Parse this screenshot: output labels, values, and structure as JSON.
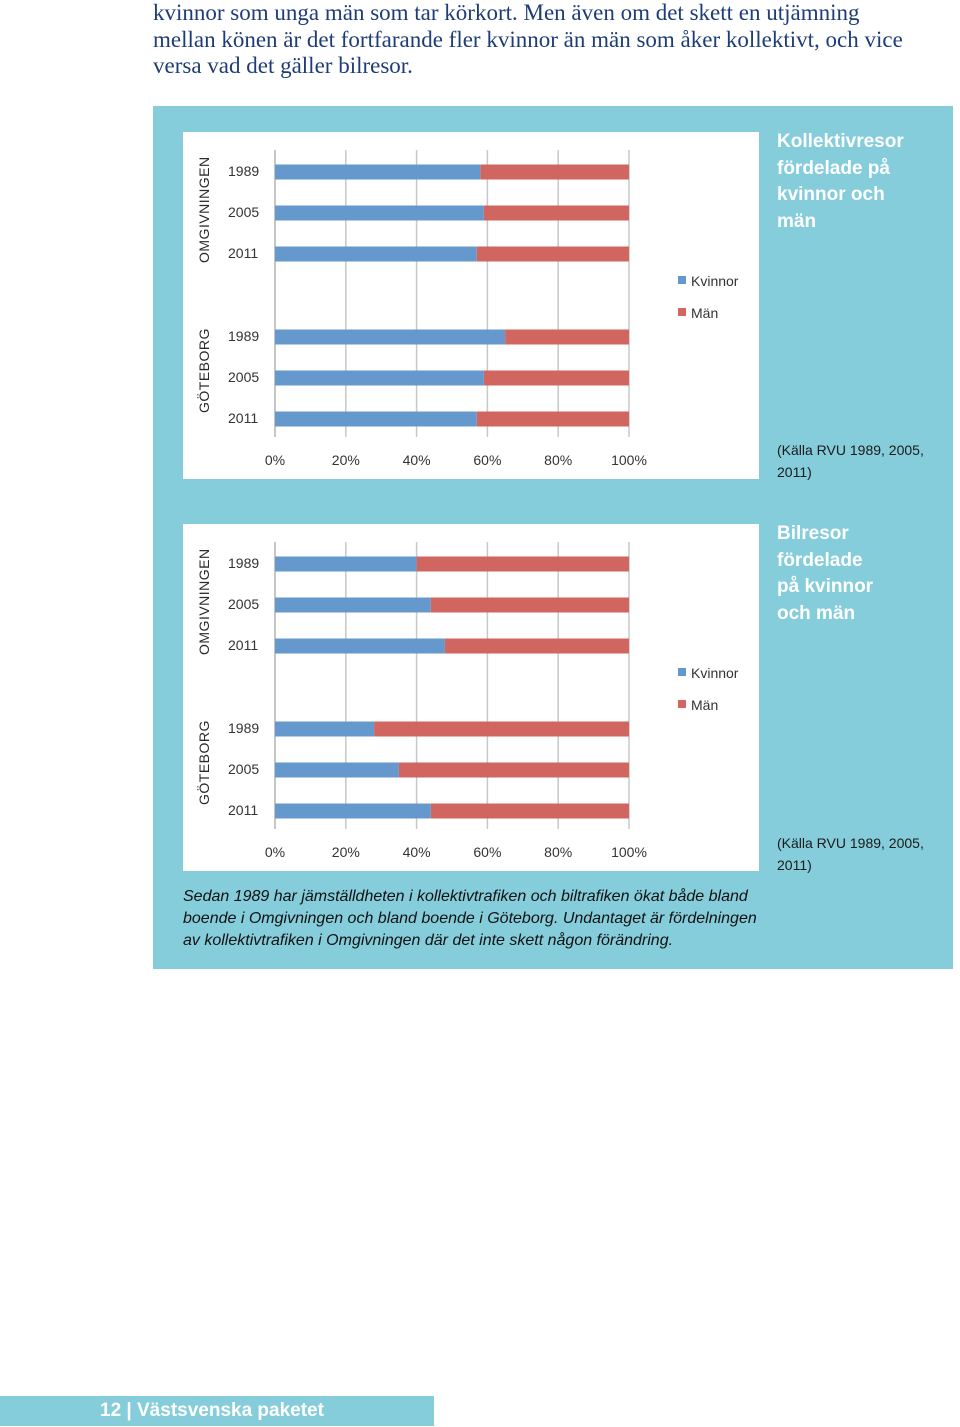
{
  "intro": {
    "lines": [
      "kvinnor som unga män som tar körkort. Men även om det skett en utjämning",
      "mellan könen är det fortfarande fler kvinnor än män som åker kollektivt, och vice",
      "versa vad det gäller bilresor."
    ]
  },
  "colors": {
    "kvinnor": "#6598cc",
    "man": "#d0665f",
    "panel": "#85cddb"
  },
  "charts": [
    {
      "side_title": [
        "Kollektivresor",
        "fördelade på",
        "kvinnor och",
        "män"
      ],
      "source": [
        "(Källa RVU 1989, 2005,",
        "2011)"
      ]
    },
    {
      "side_title": [
        "Bilresor",
        "fördelade",
        "på kvinnor",
        "och män"
      ],
      "source": [
        "(Källa RVU 1989, 2005,",
        "2011)"
      ]
    }
  ],
  "caption": [
    "Sedan 1989 har jämställdheten i kollektivtrafiken och biltrafiken ökat både bland",
    "boende i Omgivningen och bland boende i Göteborg. Undantaget är fördelningen",
    "av kollektivtrafiken i Omgivningen där det inte skett någon förändring."
  ],
  "footer": {
    "text": "12 | Västsvenska paketet"
  },
  "chart_data": [
    {
      "type": "bar",
      "orientation": "horizontal",
      "stacked": "100%",
      "title": "Kollektivresor fördelade på kvinnor och män",
      "legend": [
        "Kvinnor",
        "Män"
      ],
      "legend_position": "right",
      "xticks": [
        "0%",
        "20%",
        "40%",
        "60%",
        "80%",
        "100%"
      ],
      "xlim": [
        0,
        100
      ],
      "grid": true,
      "groups": [
        {
          "name": "OMGIVNINGEN",
          "categories": [
            "1989",
            "2005",
            "2011"
          ],
          "kvinnor": [
            58,
            59,
            57
          ],
          "man": [
            42,
            41,
            43
          ]
        },
        {
          "name": "GÖTEBORG",
          "categories": [
            "1989",
            "2005",
            "2011"
          ],
          "kvinnor": [
            65,
            59,
            57
          ],
          "man": [
            35,
            41,
            43
          ]
        }
      ]
    },
    {
      "type": "bar",
      "orientation": "horizontal",
      "stacked": "100%",
      "title": "Bilresor fördelade på kvinnor och män",
      "legend": [
        "Kvinnor",
        "Män"
      ],
      "legend_position": "right",
      "xticks": [
        "0%",
        "20%",
        "40%",
        "60%",
        "80%",
        "100%"
      ],
      "xlim": [
        0,
        100
      ],
      "grid": true,
      "groups": [
        {
          "name": "OMGIVNINGEN",
          "categories": [
            "1989",
            "2005",
            "2011"
          ],
          "kvinnor": [
            40,
            44,
            48
          ],
          "man": [
            60,
            56,
            52
          ]
        },
        {
          "name": "GÖTEBORG",
          "categories": [
            "1989",
            "2005",
            "2011"
          ],
          "kvinnor": [
            28,
            35,
            44
          ],
          "man": [
            72,
            65,
            56
          ]
        }
      ]
    }
  ]
}
